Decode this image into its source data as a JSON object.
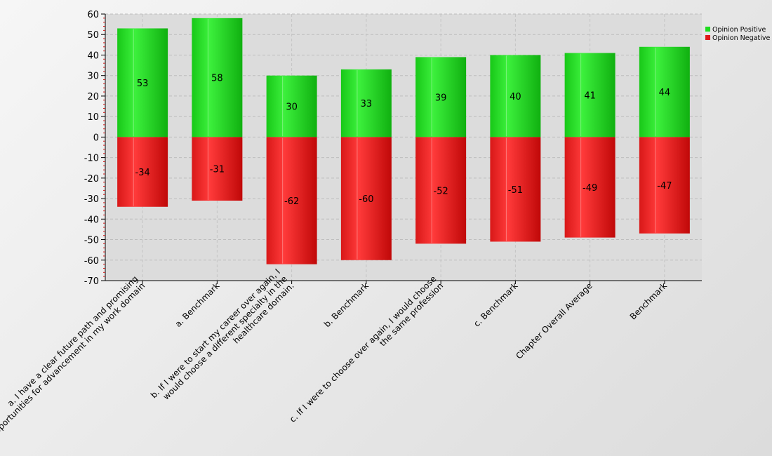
{
  "chart_data": {
    "type": "bar",
    "stacked": true,
    "categories": [
      [
        "a. I have a clear future path and promising",
        "opportunities for advancement in my work domain"
      ],
      [
        "a. Benchmark"
      ],
      [
        "b. If I were to start my career over again, I",
        "would choose a different specialty in the",
        "healthcare domain."
      ],
      [
        "b. Benchmark"
      ],
      [
        "c. If I were to choose over again, I would choose",
        "the same profession"
      ],
      [
        "c. Benchmark"
      ],
      [
        "Chapter Overall Average"
      ],
      [
        "Benchmark"
      ]
    ],
    "series": [
      {
        "name": "Opinion Positive",
        "color": "#1fdc1f",
        "values": [
          53,
          58,
          30,
          33,
          39,
          40,
          41,
          44
        ]
      },
      {
        "name": "Opinion Negative",
        "color": "#e01818",
        "values": [
          -34,
          -31,
          -62,
          -60,
          -52,
          -51,
          -49,
          -47
        ]
      }
    ],
    "ylim": [
      -70,
      60
    ],
    "yticks": [
      60,
      50,
      40,
      30,
      20,
      10,
      0,
      -10,
      -20,
      -30,
      -40,
      -50,
      -60,
      -70
    ],
    "grid": true,
    "legend": "top-right"
  }
}
